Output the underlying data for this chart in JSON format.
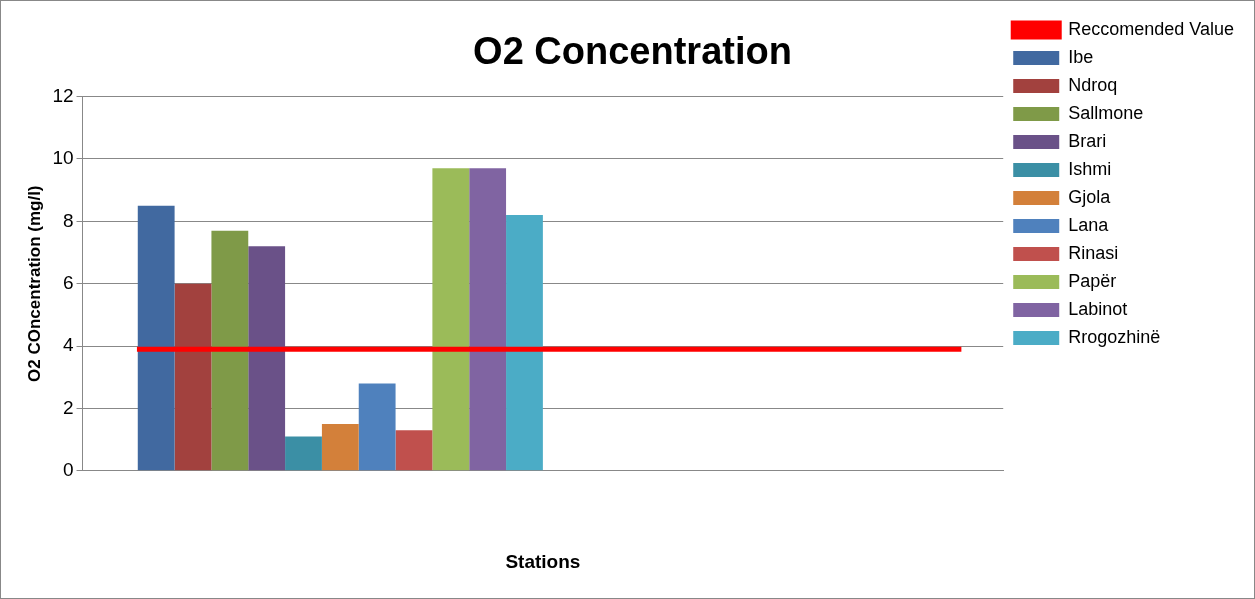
{
  "chart_data": {
    "type": "bar",
    "title": "O2 Concentration",
    "xlabel": "Stations",
    "ylabel": "O2 COncentration (mg/l)",
    "categories": [
      null
    ],
    "series": [
      {
        "name": "Ibe",
        "color": "#4169a0",
        "values": [
          8.5
        ]
      },
      {
        "name": "Ndroq",
        "color": "#a2413e",
        "values": [
          6.0
        ]
      },
      {
        "name": "Sallmone",
        "color": "#7f9a48",
        "values": [
          7.7
        ]
      },
      {
        "name": "Brari",
        "color": "#6a5188",
        "values": [
          7.2
        ]
      },
      {
        "name": "Ishmi",
        "color": "#3b8fa5",
        "values": [
          1.1
        ]
      },
      {
        "name": "Gjola",
        "color": "#d3803a",
        "values": [
          1.5
        ]
      },
      {
        "name": "Lana",
        "color": "#4f81bd",
        "values": [
          2.8
        ]
      },
      {
        "name": "Rinasi",
        "color": "#c0504d",
        "values": [
          1.3
        ]
      },
      {
        "name": "Papër",
        "color": "#9bbb59",
        "values": [
          9.7
        ]
      },
      {
        "name": "Labinot",
        "color": "#8064a2",
        "values": [
          9.7
        ]
      },
      {
        "name": "Rrogozhinë",
        "color": "#4bacc6",
        "values": [
          8.2
        ]
      }
    ],
    "ref_lines": [
      {
        "axis": "y",
        "value": 3.9,
        "label": "Reccomended Value",
        "color": "#ff0000"
      }
    ],
    "ylim": [
      0,
      12
    ],
    "yticks": [
      0,
      2,
      4,
      6,
      8,
      10,
      12
    ],
    "grid": "y",
    "legend": "right"
  }
}
